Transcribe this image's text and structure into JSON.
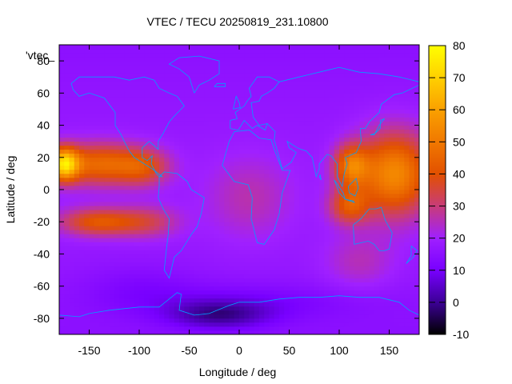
{
  "chart_data": {
    "type": "heatmap",
    "title": "VTEC / TECU 20250819_231.10800",
    "xlabel": "Longitude / deg",
    "ylabel": "Latitude / deg",
    "xlim": [
      -180,
      180
    ],
    "ylim": [
      -90,
      90
    ],
    "x_ticks": [
      -150,
      -100,
      -50,
      0,
      50,
      100,
      150
    ],
    "y_ticks": [
      -80,
      -60,
      -40,
      -20,
      0,
      20,
      40,
      60,
      80
    ],
    "colorbar": {
      "label": "",
      "range": [
        -10,
        80
      ],
      "ticks": [
        -10,
        0,
        10,
        20,
        30,
        40,
        50,
        60,
        70,
        80
      ],
      "palette": [
        "#000000",
        "#3c0096",
        "#7800ff",
        "#a020ff",
        "#c83c78",
        "#e25000",
        "#f07800",
        "#faa000",
        "#ffd000",
        "#ffff00"
      ]
    },
    "legend": "'vtec_",
    "grid": false,
    "overlay": "coastlines",
    "overlay_color": "#00a0ff",
    "sample_values_tecu": [
      {
        "lon": -175,
        "lat": 15,
        "value": 62
      },
      {
        "lon": -150,
        "lat": 15,
        "value": 50
      },
      {
        "lon": -100,
        "lat": 12,
        "value": 40
      },
      {
        "lon": -140,
        "lat": -20,
        "value": 52
      },
      {
        "lon": -80,
        "lat": -22,
        "value": 35
      },
      {
        "lon": 110,
        "lat": 15,
        "value": 45
      },
      {
        "lon": 150,
        "lat": 15,
        "value": 55
      },
      {
        "lon": 150,
        "lat": -10,
        "value": 52
      },
      {
        "lon": 0,
        "lat": 0,
        "value": 18
      },
      {
        "lon": 0,
        "lat": 60,
        "value": 14
      },
      {
        "lon": -20,
        "lat": -80,
        "value": 0
      },
      {
        "lon": 100,
        "lat": -40,
        "value": 28
      }
    ]
  }
}
